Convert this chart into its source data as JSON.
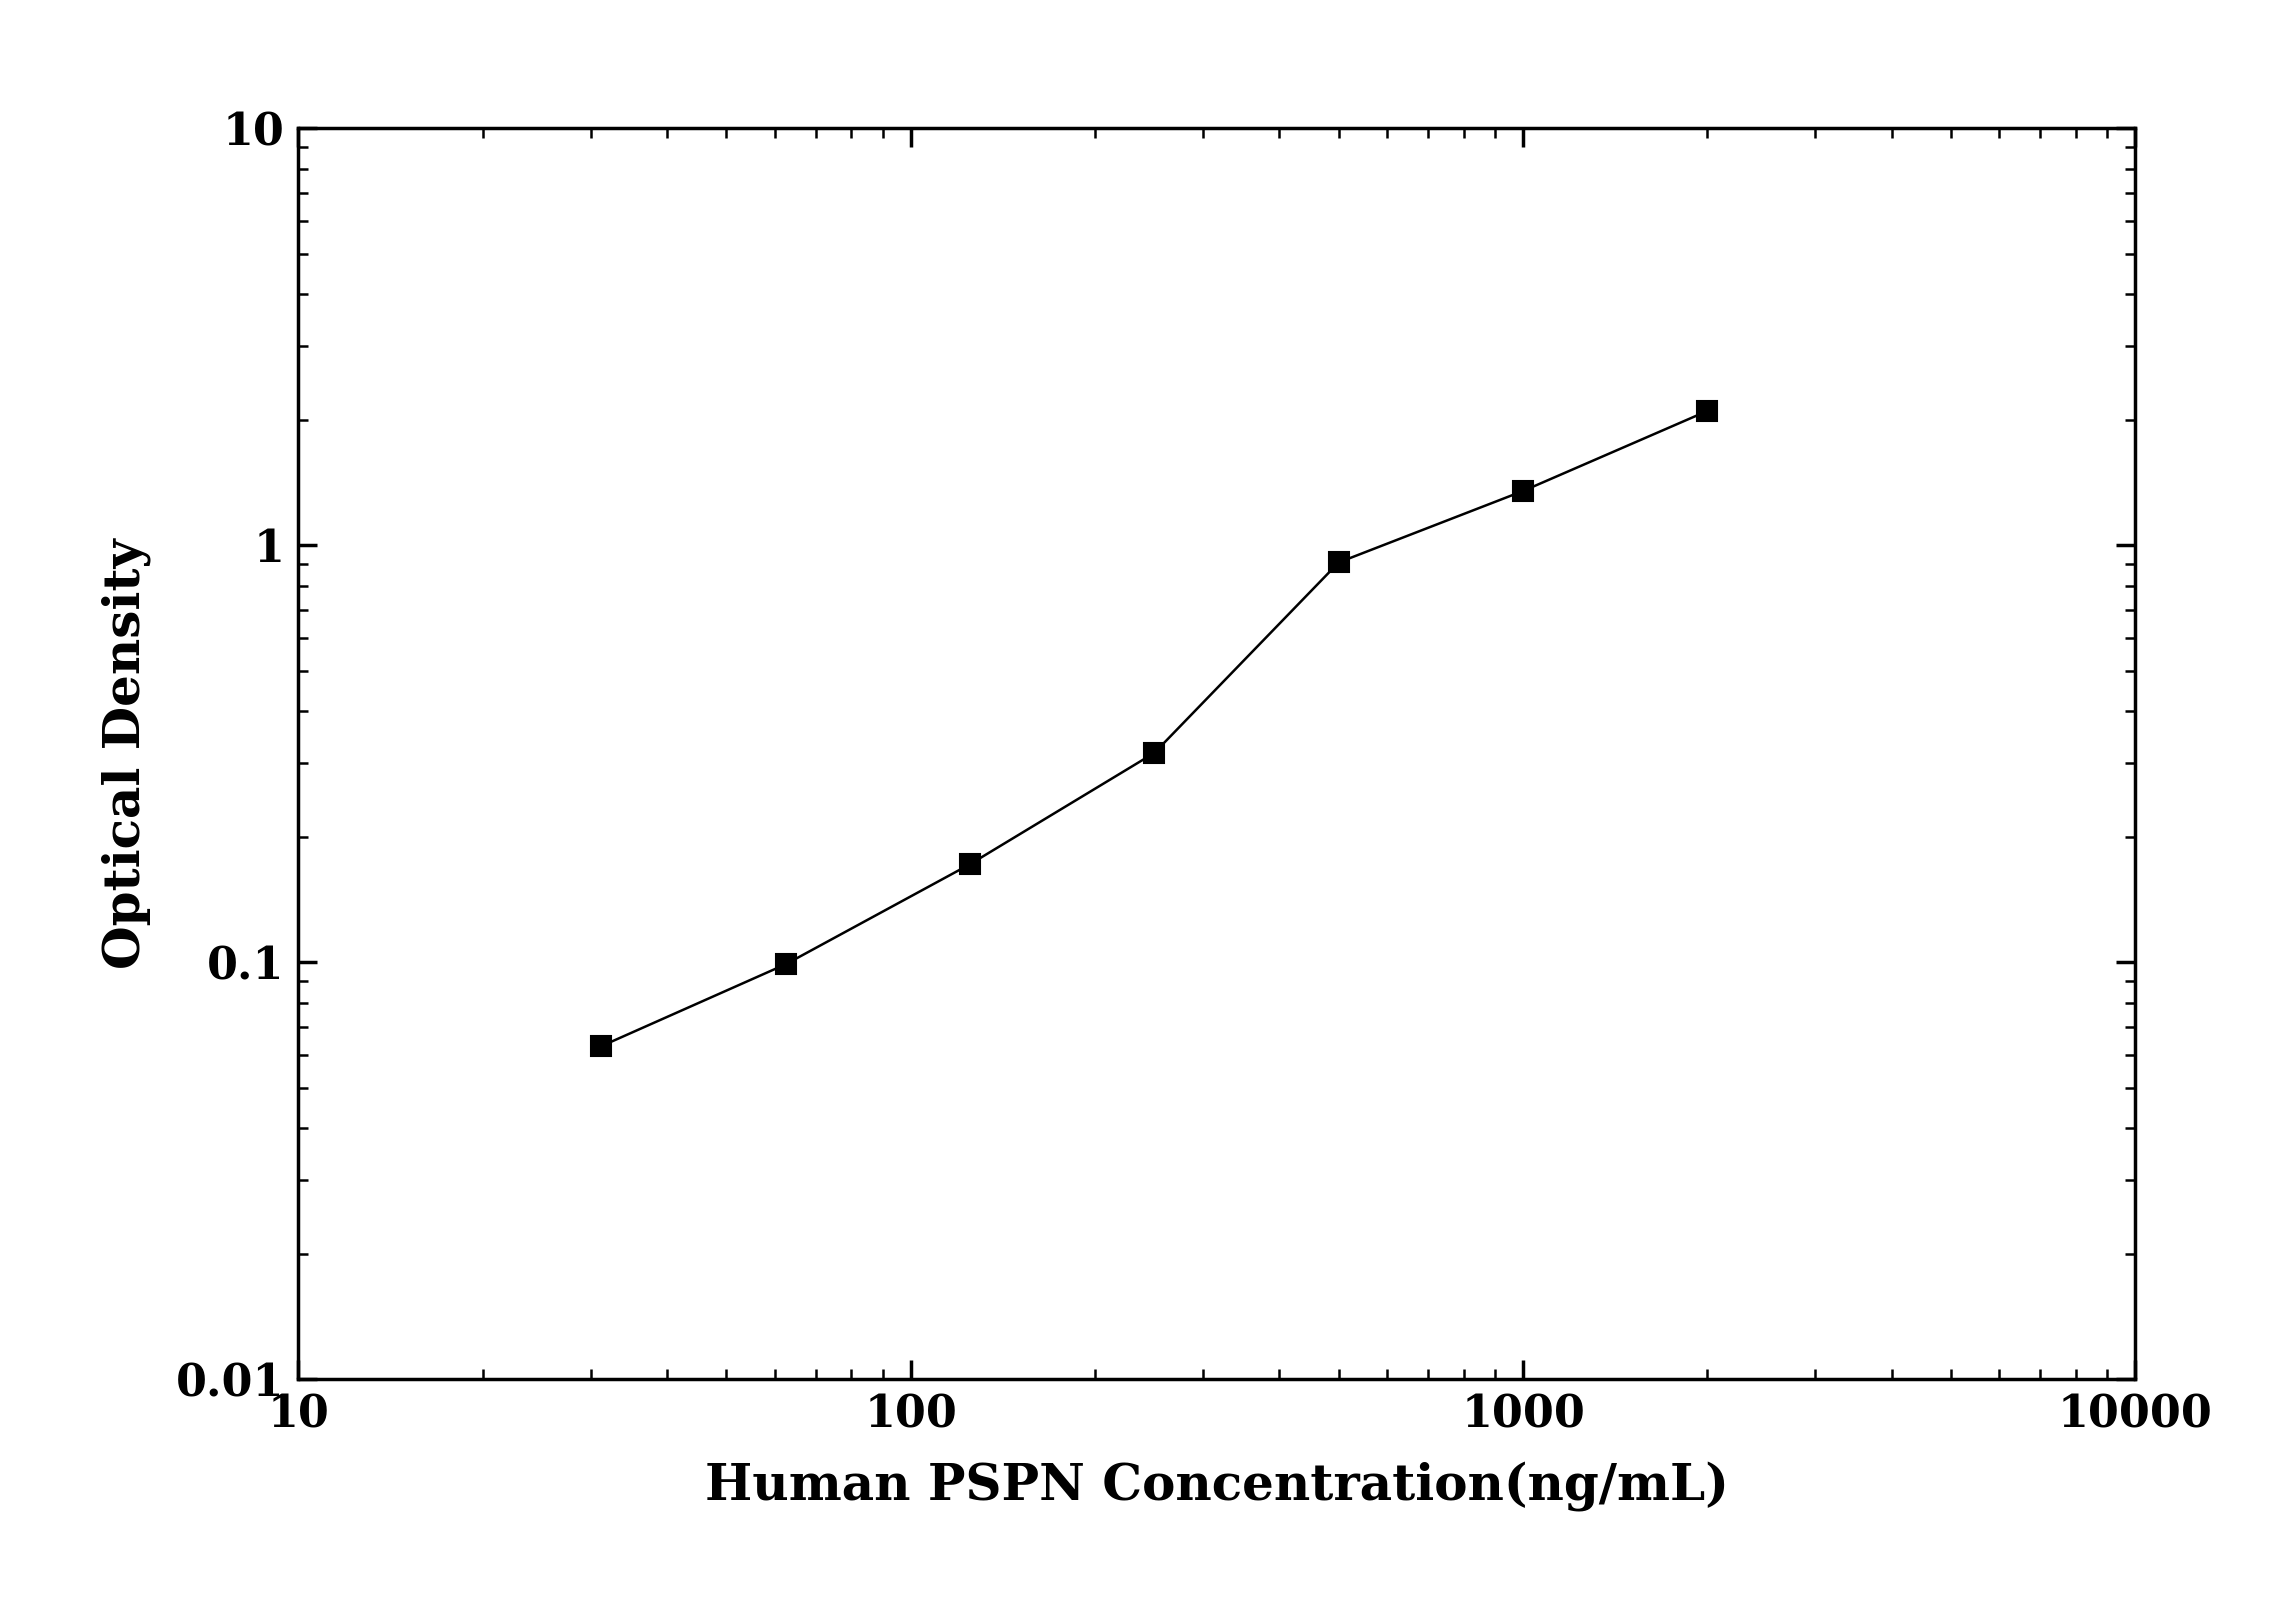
{
  "x_data": [
    31.25,
    62.5,
    125,
    250,
    500,
    1000,
    2000
  ],
  "y_data": [
    0.063,
    0.099,
    0.172,
    0.318,
    0.91,
    1.35,
    2.1
  ],
  "xlabel": "Human PSPN Concentration(ng/mL)",
  "ylabel": "Optical Density",
  "xlim": [
    10,
    10000
  ],
  "ylim": [
    0.01,
    10
  ],
  "xticks": [
    10,
    100,
    1000,
    10000
  ],
  "yticks": [
    0.01,
    0.1,
    1,
    10
  ],
  "line_color": "#000000",
  "marker": "s",
  "marker_color": "#000000",
  "marker_size": 14,
  "line_width": 1.8,
  "font_family": "Times New Roman",
  "label_fontsize": 36,
  "tick_fontsize": 32,
  "background_color": "#ffffff",
  "axes_linewidth": 2.5
}
